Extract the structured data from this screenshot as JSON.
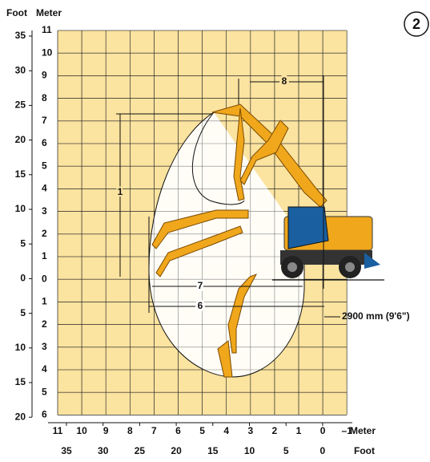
{
  "badge": "2",
  "axes": {
    "left_feet_title": "Foot",
    "left_meter_title": "Meter",
    "left_meter_ticks": [
      "11",
      "10",
      "9",
      "8",
      "7",
      "6",
      "5",
      "4",
      "3",
      "2",
      "1",
      "0",
      "1",
      "2",
      "3",
      "4",
      "5",
      "6"
    ],
    "left_feet_ticks": [
      "35",
      "30",
      "25",
      "20",
      "15",
      "10",
      "5",
      "0",
      "5",
      "10",
      "15",
      "20"
    ],
    "bottom_meter_ticks": [
      "11",
      "10",
      "9",
      "8",
      "7",
      "6",
      "5",
      "4",
      "3",
      "2",
      "1",
      "0",
      "–1"
    ],
    "bottom_meter_title": "Meter",
    "bottom_feet_ticks": [
      "35",
      "30",
      "25",
      "20",
      "15",
      "10",
      "5",
      "0"
    ],
    "bottom_feet_title": "Foot"
  },
  "dimensions": {
    "d1": "1",
    "d6": "6",
    "d7": "7",
    "d8": "8",
    "clearance": "2900 mm (9'6\")"
  }
}
